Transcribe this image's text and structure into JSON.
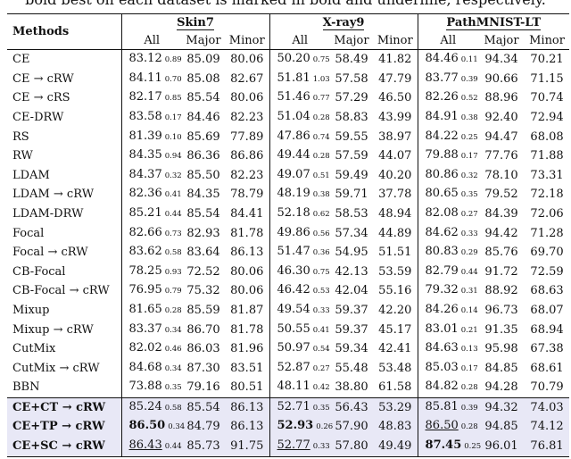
{
  "caption": "bold best on each dataset is marked in bold and underline, respectively.",
  "header": {
    "methods_label": "Methods",
    "datasets": [
      "Skin7",
      "X-ray9",
      "PathMNIST-LT"
    ],
    "subcols": [
      "All",
      "Major",
      "Minor"
    ]
  },
  "rows": [
    {
      "method": "CE",
      "skin": [
        "83.12",
        "0.89",
        "85.09",
        "80.06"
      ],
      "xray": [
        "50.20",
        "0.75",
        "58.49",
        "41.82"
      ],
      "path": [
        "84.46",
        "0.11",
        "94.34",
        "70.21"
      ]
    },
    {
      "method": "CE → cRW",
      "skin": [
        "84.11",
        "0.70",
        "85.08",
        "82.67"
      ],
      "xray": [
        "51.81",
        "1.03",
        "57.58",
        "47.79"
      ],
      "path": [
        "83.77",
        "0.39",
        "90.66",
        "71.15"
      ]
    },
    {
      "method": "CE → cRS",
      "skin": [
        "82.17",
        "0.85",
        "85.54",
        "80.06"
      ],
      "xray": [
        "51.46",
        "0.77",
        "57.29",
        "46.50"
      ],
      "path": [
        "82.26",
        "0.52",
        "88.96",
        "70.74"
      ]
    },
    {
      "method": "CE-DRW",
      "skin": [
        "83.58",
        "0.17",
        "84.46",
        "82.23"
      ],
      "xray": [
        "51.04",
        "0.28",
        "58.83",
        "43.99"
      ],
      "path": [
        "84.91",
        "0.38",
        "92.40",
        "72.94"
      ]
    },
    {
      "method": "RS",
      "skin": [
        "81.39",
        "0.10",
        "85.69",
        "77.89"
      ],
      "xray": [
        "47.86",
        "0.74",
        "59.55",
        "38.97"
      ],
      "path": [
        "84.22",
        "0.25",
        "94.47",
        "68.08"
      ]
    },
    {
      "method": "RW",
      "skin": [
        "84.35",
        "0.94",
        "86.36",
        "86.86"
      ],
      "xray": [
        "49.44",
        "0.28",
        "57.59",
        "44.07"
      ],
      "path": [
        "79.88",
        "0.17",
        "77.76",
        "71.88"
      ]
    },
    {
      "method": "LDAM",
      "skin": [
        "84.37",
        "0.32",
        "85.50",
        "82.23"
      ],
      "xray": [
        "49.07",
        "0.51",
        "59.49",
        "40.20"
      ],
      "path": [
        "80.86",
        "0.32",
        "78.10",
        "73.31"
      ]
    },
    {
      "method": "LDAM → cRW",
      "skin": [
        "82.36",
        "0.41",
        "84.35",
        "78.79"
      ],
      "xray": [
        "48.19",
        "0.38",
        "59.71",
        "37.78"
      ],
      "path": [
        "80.65",
        "0.35",
        "79.52",
        "72.18"
      ]
    },
    {
      "method": "LDAM-DRW",
      "skin": [
        "85.21",
        "0.44",
        "85.54",
        "84.41"
      ],
      "xray": [
        "52.18",
        "0.62",
        "58.53",
        "48.94"
      ],
      "path": [
        "82.08",
        "0.27",
        "84.39",
        "72.06"
      ]
    },
    {
      "method": "Focal",
      "skin": [
        "82.66",
        "0.73",
        "82.93",
        "81.78"
      ],
      "xray": [
        "49.86",
        "0.56",
        "57.34",
        "44.89"
      ],
      "path": [
        "84.62",
        "0.33",
        "94.42",
        "71.28"
      ]
    },
    {
      "method": "Focal → cRW",
      "skin": [
        "83.62",
        "0.58",
        "83.64",
        "86.13"
      ],
      "xray": [
        "51.47",
        "0.36",
        "54.95",
        "51.51"
      ],
      "path": [
        "80.83",
        "0.29",
        "85.76",
        "69.70"
      ]
    },
    {
      "method": "CB-Focal",
      "skin": [
        "78.25",
        "0.93",
        "72.52",
        "80.06"
      ],
      "xray": [
        "46.30",
        "0.75",
        "42.13",
        "53.59"
      ],
      "path": [
        "82.79",
        "0.44",
        "91.72",
        "72.59"
      ]
    },
    {
      "method": "CB-Focal → cRW",
      "skin": [
        "76.95",
        "0.79",
        "75.32",
        "80.06"
      ],
      "xray": [
        "46.42",
        "0.53",
        "42.04",
        "55.16"
      ],
      "path": [
        "79.32",
        "0.31",
        "88.92",
        "68.63"
      ]
    },
    {
      "method": "Mixup",
      "skin": [
        "81.65",
        "0.28",
        "85.59",
        "81.87"
      ],
      "xray": [
        "49.54",
        "0.33",
        "59.37",
        "42.20"
      ],
      "path": [
        "84.26",
        "0.14",
        "96.73",
        "68.07"
      ]
    },
    {
      "method": "Mixup → cRW",
      "skin": [
        "83.37",
        "0.34",
        "86.70",
        "81.78"
      ],
      "xray": [
        "50.55",
        "0.41",
        "59.37",
        "45.17"
      ],
      "path": [
        "83.01",
        "0.21",
        "91.35",
        "68.94"
      ]
    },
    {
      "method": "CutMix",
      "skin": [
        "82.02",
        "0.46",
        "86.03",
        "81.96"
      ],
      "xray": [
        "50.97",
        "0.54",
        "59.34",
        "42.41"
      ],
      "path": [
        "84.63",
        "0.13",
        "95.98",
        "67.38"
      ]
    },
    {
      "method": "CutMix → cRW",
      "skin": [
        "84.68",
        "0.34",
        "87.30",
        "83.51"
      ],
      "xray": [
        "52.87",
        "0.27",
        "55.48",
        "53.48"
      ],
      "path": [
        "85.03",
        "0.17",
        "84.85",
        "68.61"
      ]
    },
    {
      "method": "BBN",
      "skin": [
        "73.88",
        "0.35",
        "79.16",
        "80.51"
      ],
      "xray": [
        "48.11",
        "0.42",
        "38.80",
        "61.58"
      ],
      "path": [
        "84.82",
        "0.28",
        "94.28",
        "70.79"
      ]
    }
  ],
  "ours": [
    {
      "method": "CE+CT → cRW",
      "skin": [
        "85.24",
        "0.58",
        "85.54",
        "86.13"
      ],
      "xray": [
        "52.71",
        "0.35",
        "56.43",
        "53.29"
      ],
      "path": [
        "85.81",
        "0.39",
        "94.32",
        "74.03"
      ]
    },
    {
      "method": "CE+TP → cRW",
      "skin": [
        "86.50",
        "0.34",
        "84.79",
        "86.13"
      ],
      "xray": [
        "52.93",
        "0.26",
        "57.90",
        "48.83"
      ],
      "path": [
        "86.50",
        "0.28",
        "94.85",
        "74.12"
      ]
    },
    {
      "method": "CE+SC → cRW",
      "skin": [
        "86.43",
        "0.44",
        "85.73",
        "91.75"
      ],
      "xray": [
        "52.77",
        "0.33",
        "57.80",
        "49.49"
      ],
      "path": [
        "87.45",
        "0.25",
        "96.01",
        "76.81"
      ]
    }
  ]
}
